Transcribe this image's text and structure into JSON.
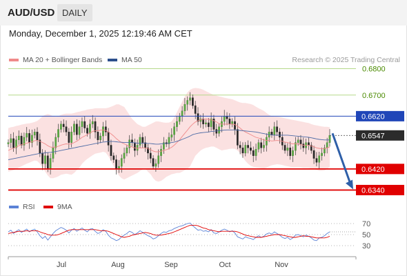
{
  "header": {
    "pair": "AUD/USD",
    "timeframe": "DAILY"
  },
  "datetime": "Monday, December 1, 2025 12:19:46 AM CET",
  "legend_top": [
    {
      "label": "MA 20 + Bollinger Bands",
      "color": "#f08a8a"
    },
    {
      "label": "MA 50",
      "color": "#2c4f8c"
    }
  ],
  "legend_bottom": [
    {
      "label": "RSI",
      "color": "#5b82d6"
    },
    {
      "label": "9MA",
      "color": "#e00000"
    }
  ],
  "credit": "Research © 2025 Trading Central",
  "chart_data": {
    "type": "candlestick",
    "y_ticks": [
      0.68,
      0.67
    ],
    "ylim": [
      0.6315,
      0.6825
    ],
    "months": [
      "Jul",
      "Aug",
      "Sep",
      "Oct",
      "Nov"
    ],
    "last_price": "0.6547",
    "levels": [
      {
        "value": 0.68,
        "label": "0.6800",
        "kind": "target"
      },
      {
        "value": 0.67,
        "label": "0.6700",
        "kind": "target"
      },
      {
        "value": 0.662,
        "label": "0.6620",
        "kind": "resistance"
      },
      {
        "value": 0.642,
        "label": "0.6420",
        "kind": "support"
      },
      {
        "value": 0.634,
        "label": "0.6340",
        "kind": "support"
      }
    ],
    "forecast_arrow": {
      "from": 0.6555,
      "to": 0.634
    },
    "closes": [
      0.652,
      0.6535,
      0.65,
      0.653,
      0.6545,
      0.651,
      0.654,
      0.6555,
      0.652,
      0.6548,
      0.656,
      0.653,
      0.648,
      0.644,
      0.647,
      0.642,
      0.646,
      0.65,
      0.654,
      0.657,
      0.659,
      0.658,
      0.656,
      0.652,
      0.656,
      0.659,
      0.655,
      0.658,
      0.66,
      0.6575,
      0.6555,
      0.659,
      0.66,
      0.656,
      0.653,
      0.6545,
      0.658,
      0.656,
      0.651,
      0.647,
      0.6455,
      0.642,
      0.643,
      0.646,
      0.648,
      0.65,
      0.653,
      0.652,
      0.649,
      0.651,
      0.654,
      0.652,
      0.65,
      0.648,
      0.646,
      0.643,
      0.644,
      0.647,
      0.6495,
      0.652,
      0.6515,
      0.654,
      0.655,
      0.658,
      0.66,
      0.662,
      0.664,
      0.6665,
      0.668,
      0.669,
      0.666,
      0.663,
      0.66,
      0.661,
      0.659,
      0.6595,
      0.658,
      0.661,
      0.657,
      0.6555,
      0.658,
      0.66,
      0.662,
      0.661,
      0.659,
      0.66,
      0.657,
      0.651,
      0.65,
      0.648,
      0.651,
      0.65,
      0.649,
      0.647,
      0.6495,
      0.652,
      0.65,
      0.651,
      0.654,
      0.656,
      0.655,
      0.658,
      0.656,
      0.654,
      0.651,
      0.649,
      0.65,
      0.647,
      0.649,
      0.652,
      0.653,
      0.6515,
      0.65,
      0.652,
      0.651,
      0.649,
      0.646,
      0.6445,
      0.647,
      0.648,
      0.65,
      0.652,
      0.6547
    ],
    "ma20": [
      0.649,
      0.6495,
      0.6498,
      0.6503,
      0.6508,
      0.6512,
      0.6515,
      0.6518,
      0.652,
      0.6523,
      0.6527,
      0.6528,
      0.6525,
      0.652,
      0.6515,
      0.6508,
      0.6503,
      0.6502,
      0.6503,
      0.6506,
      0.651,
      0.6513,
      0.6515,
      0.6514,
      0.6515,
      0.652,
      0.6525,
      0.6532,
      0.654,
      0.6545,
      0.655,
      0.6557,
      0.6562,
      0.6565,
      0.6565,
      0.6567,
      0.6568,
      0.6566,
      0.656,
      0.6553,
      0.6545,
      0.6535,
      0.6527,
      0.652,
      0.6515,
      0.651,
      0.6506,
      0.6503,
      0.65,
      0.6498,
      0.65,
      0.65,
      0.65,
      0.6497,
      0.6493,
      0.6488,
      0.6485,
      0.6485,
      0.6487,
      0.649,
      0.6493,
      0.6497,
      0.6502,
      0.651,
      0.652,
      0.653,
      0.6543,
      0.6555,
      0.6567,
      0.658,
      0.659,
      0.6598,
      0.6603,
      0.6607,
      0.6608,
      0.661,
      0.6608,
      0.6606,
      0.6603,
      0.6598,
      0.6592,
      0.659,
      0.659,
      0.659,
      0.659,
      0.659,
      0.6588,
      0.6582,
      0.6575,
      0.6566,
      0.656,
      0.6555,
      0.655,
      0.6545,
      0.654,
      0.6537,
      0.6533,
      0.653,
      0.6528,
      0.6528,
      0.6526,
      0.6527,
      0.6528,
      0.6527,
      0.6525,
      0.6522,
      0.652,
      0.6517,
      0.6515,
      0.6515,
      0.6515,
      0.6512,
      0.651,
      0.651,
      0.651,
      0.6507,
      0.6504,
      0.65,
      0.6498,
      0.6497,
      0.6497,
      0.65,
      0.6503
    ],
    "bb_upper": [
      0.6575,
      0.6578,
      0.658,
      0.6583,
      0.6585,
      0.6588,
      0.659,
      0.6592,
      0.6593,
      0.6595,
      0.6598,
      0.6602,
      0.661,
      0.662,
      0.6625,
      0.6628,
      0.6625,
      0.662,
      0.6618,
      0.662,
      0.6625,
      0.6628,
      0.663,
      0.663,
      0.663,
      0.6632,
      0.6635,
      0.6637,
      0.664,
      0.6642,
      0.6645,
      0.6647,
      0.6648,
      0.665,
      0.665,
      0.665,
      0.665,
      0.665,
      0.6652,
      0.6656,
      0.666,
      0.6665,
      0.6665,
      0.666,
      0.6655,
      0.664,
      0.6625,
      0.661,
      0.66,
      0.659,
      0.6585,
      0.658,
      0.658,
      0.6585,
      0.659,
      0.6595,
      0.66,
      0.66,
      0.6598,
      0.6596,
      0.6595,
      0.6596,
      0.66,
      0.6615,
      0.6635,
      0.6655,
      0.6675,
      0.6695,
      0.671,
      0.672,
      0.6725,
      0.6727,
      0.6726,
      0.6724,
      0.672,
      0.6715,
      0.671,
      0.6705,
      0.67,
      0.6698,
      0.6695,
      0.6693,
      0.669,
      0.6688,
      0.6686,
      0.6684,
      0.668,
      0.6676,
      0.6672,
      0.667,
      0.667,
      0.6668,
      0.6666,
      0.6662,
      0.6656,
      0.665,
      0.6645,
      0.664,
      0.6632,
      0.6625,
      0.662,
      0.6618,
      0.6618,
      0.6617,
      0.6615,
      0.6612,
      0.661,
      0.6608,
      0.6606,
      0.6604,
      0.6602,
      0.66,
      0.6598,
      0.6596,
      0.6594,
      0.659,
      0.6587,
      0.6585,
      0.6583,
      0.6581,
      0.658,
      0.658,
      0.6578
    ],
    "bb_lower": [
      0.641,
      0.6412,
      0.6415,
      0.642,
      0.6425,
      0.643,
      0.6435,
      0.644,
      0.6444,
      0.6448,
      0.6452,
      0.645,
      0.644,
      0.6425,
      0.641,
      0.6395,
      0.6385,
      0.6385,
      0.6388,
      0.6392,
      0.6398,
      0.64,
      0.6402,
      0.64,
      0.6398,
      0.6405,
      0.6415,
      0.6425,
      0.644,
      0.645,
      0.6458,
      0.6465,
      0.6472,
      0.6478,
      0.648,
      0.6482,
      0.6485,
      0.6482,
      0.6468,
      0.645,
      0.643,
      0.641,
      0.6395,
      0.6385,
      0.638,
      0.6385,
      0.639,
      0.6395,
      0.64,
      0.6405,
      0.6412,
      0.6418,
      0.642,
      0.641,
      0.64,
      0.6385,
      0.6375,
      0.6372,
      0.6375,
      0.6382,
      0.639,
      0.6395,
      0.64,
      0.6402,
      0.6405,
      0.6405,
      0.641,
      0.6415,
      0.642,
      0.643,
      0.645,
      0.647,
      0.648,
      0.649,
      0.6496,
      0.65,
      0.6502,
      0.6505,
      0.6505,
      0.65,
      0.6495,
      0.649,
      0.6492,
      0.6494,
      0.6496,
      0.6497,
      0.6496,
      0.649,
      0.648,
      0.6465,
      0.645,
      0.644,
      0.6432,
      0.6428,
      0.6425,
      0.6424,
      0.6423,
      0.6422,
      0.6424,
      0.643,
      0.6434,
      0.6436,
      0.6438,
      0.6437,
      0.6435,
      0.6432,
      0.643,
      0.6428,
      0.6426,
      0.6426,
      0.6427,
      0.6426,
      0.6424,
      0.6424,
      0.6424,
      0.6422,
      0.642,
      0.6416,
      0.6413,
      0.6413,
      0.6414,
      0.642,
      0.6428
    ],
    "ma50": [
      0.6455,
      0.6457,
      0.6459,
      0.6461,
      0.6463,
      0.6465,
      0.6467,
      0.6469,
      0.6471,
      0.6473,
      0.6475,
      0.6477,
      0.6479,
      0.648,
      0.6481,
      0.6482,
      0.6483,
      0.6484,
      0.6486,
      0.6488,
      0.649,
      0.6492,
      0.6494,
      0.6496,
      0.6498,
      0.65,
      0.6502,
      0.6504,
      0.6506,
      0.6508,
      0.651,
      0.6512,
      0.6514,
      0.6516,
      0.6518,
      0.652,
      0.6522,
      0.6523,
      0.6524,
      0.6524,
      0.6524,
      0.6523,
      0.6522,
      0.6521,
      0.652,
      0.652,
      0.652,
      0.652,
      0.6519,
      0.6518,
      0.6518,
      0.6518,
      0.6518,
      0.6517,
      0.6516,
      0.6515,
      0.6514,
      0.6514,
      0.6515,
      0.6516,
      0.6517,
      0.6518,
      0.652,
      0.6522,
      0.6525,
      0.6528,
      0.6532,
      0.6536,
      0.654,
      0.6545,
      0.655,
      0.6553,
      0.6555,
      0.6557,
      0.6558,
      0.6559,
      0.656,
      0.6562,
      0.6563,
      0.6564,
      0.6565,
      0.6566,
      0.6567,
      0.6568,
      0.6568,
      0.6568,
      0.6568,
      0.6567,
      0.6566,
      0.6565,
      0.6564,
      0.6563,
      0.6562,
      0.6561,
      0.656,
      0.6558,
      0.6556,
      0.6554,
      0.6552,
      0.655,
      0.6549,
      0.6548,
      0.6548,
      0.6548,
      0.6548,
      0.6548,
      0.6548,
      0.6547,
      0.6546,
      0.6545,
      0.6544,
      0.6543,
      0.6542,
      0.6541,
      0.654,
      0.6538,
      0.6536,
      0.6534,
      0.6532,
      0.6531,
      0.653,
      0.653,
      0.653
    ],
    "rsi": {
      "y_ticks": [
        70,
        50,
        30
      ],
      "ylim": [
        20,
        80
      ],
      "values": [
        55,
        58,
        52,
        56,
        59,
        54,
        57,
        60,
        55,
        58,
        60,
        55,
        48,
        43,
        47,
        40,
        46,
        52,
        57,
        60,
        63,
        61,
        58,
        53,
        58,
        61,
        56,
        59,
        62,
        58,
        55,
        60,
        61,
        56,
        52,
        54,
        59,
        56,
        49,
        44,
        42,
        39,
        41,
        46,
        49,
        52,
        56,
        54,
        50,
        53,
        57,
        54,
        51,
        48,
        46,
        42,
        44,
        48,
        52,
        55,
        54,
        57,
        58,
        61,
        63,
        65,
        66,
        68,
        70,
        71,
        66,
        62,
        58,
        59,
        56,
        57,
        55,
        59,
        53,
        52,
        55,
        58,
        60,
        58,
        55,
        57,
        53,
        46,
        44,
        42,
        46,
        44,
        43,
        41,
        45,
        48,
        45,
        47,
        51,
        53,
        51,
        55,
        52,
        49,
        45,
        43,
        45,
        41,
        44,
        49,
        50,
        48,
        46,
        49,
        47,
        44,
        40,
        39,
        44,
        45,
        48,
        52,
        55
      ],
      "ma9": [
        52,
        53,
        54,
        55,
        56,
        56,
        56,
        57,
        56,
        57,
        57,
        57,
        55,
        53,
        52,
        50,
        49,
        49,
        49,
        50,
        52,
        54,
        56,
        58,
        59,
        59,
        59,
        59,
        59,
        59,
        59,
        59,
        59,
        59,
        58,
        57,
        57,
        57,
        56,
        54,
        52,
        50,
        48,
        46,
        45,
        46,
        47,
        49,
        50,
        51,
        52,
        53,
        54,
        53,
        52,
        50,
        49,
        49,
        49,
        50,
        51,
        52,
        53,
        55,
        57,
        59,
        61,
        63,
        65,
        67,
        67,
        67,
        66,
        64,
        62,
        61,
        59,
        58,
        57,
        56,
        55,
        56,
        56,
        56,
        56,
        56,
        56,
        55,
        53,
        51,
        49,
        48,
        47,
        46,
        45,
        45,
        45,
        46,
        47,
        48,
        49,
        50,
        50,
        50,
        49,
        48,
        47,
        46,
        45,
        45,
        46,
        47,
        48,
        47,
        47,
        46,
        45,
        44,
        44,
        44,
        44,
        45,
        47
      ]
    }
  }
}
